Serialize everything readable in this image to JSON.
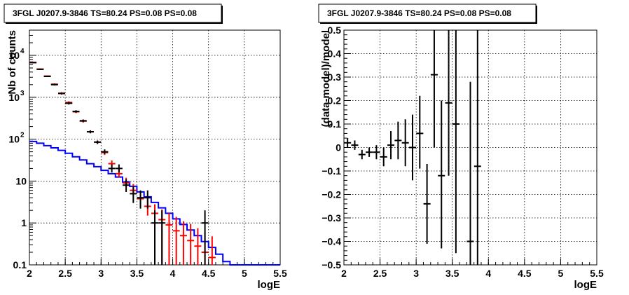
{
  "chart_data": [
    {
      "type": "line",
      "title": "3FGL J0207.9-3846 TS=80.24 PS=0.08 PS=0.08",
      "xlabel": "logE",
      "ylabel": "Nb of counts",
      "xlim": [
        2,
        5.5
      ],
      "ylim": [
        0.1,
        40000
      ],
      "yscale": "log",
      "grid": true,
      "x_ticks": [
        "2",
        "2.5",
        "3",
        "3.5",
        "4",
        "4.5",
        "5",
        "5.5"
      ],
      "y_ticks": [
        "10",
        "1",
        "0.1"
      ],
      "y_ticks_pow": [
        {
          "base": "10",
          "exp": "4"
        },
        {
          "base": "10",
          "exp": "3"
        },
        {
          "base": "10",
          "exp": "2"
        }
      ],
      "series": [
        {
          "style": "histogram",
          "color": "#0000ff",
          "edges": [
            2.0,
            2.1,
            2.2,
            2.3,
            2.4,
            2.5,
            2.6,
            2.7,
            2.8,
            2.9,
            3.0,
            3.1,
            3.2,
            3.3,
            3.4,
            3.5,
            3.6,
            3.7,
            3.8,
            3.9,
            4.0,
            4.1,
            4.2,
            4.3,
            4.4,
            4.5,
            4.6,
            4.7,
            4.8,
            4.9,
            5.0,
            5.1,
            5.2,
            5.3,
            5.4,
            5.5
          ],
          "values": [
            88,
            80,
            70,
            62,
            54,
            46,
            38,
            32,
            26,
            22,
            18,
            15,
            12.5,
            9.5,
            7.5,
            5.5,
            4.2,
            3.1,
            2.3,
            1.7,
            1.25,
            0.92,
            0.68,
            0.5,
            0.36,
            0.26,
            0.18,
            0.12,
            0.1,
            0.1,
            0.1,
            0.1,
            0.1,
            0.1,
            0.1
          ]
        },
        {
          "style": "errorbar",
          "color": "#ff0000",
          "points": [
            {
              "x": 2.05,
              "y": 6800,
              "lo": 6600,
              "hi": 7000
            },
            {
              "x": 2.15,
              "y": 4700,
              "lo": 4550,
              "hi": 4850
            },
            {
              "x": 2.25,
              "y": 3200,
              "lo": 3080,
              "hi": 3320
            },
            {
              "x": 2.35,
              "y": 2050,
              "lo": 1960,
              "hi": 2140
            },
            {
              "x": 2.45,
              "y": 1250,
              "lo": 1180,
              "hi": 1320
            },
            {
              "x": 2.55,
              "y": 750,
              "lo": 700,
              "hi": 800
            },
            {
              "x": 2.65,
              "y": 450,
              "lo": 420,
              "hi": 480
            },
            {
              "x": 2.75,
              "y": 270,
              "lo": 250,
              "hi": 290
            },
            {
              "x": 2.85,
              "y": 150,
              "lo": 138,
              "hi": 162
            },
            {
              "x": 2.95,
              "y": 85,
              "lo": 77,
              "hi": 93
            },
            {
              "x": 3.05,
              "y": 48,
              "lo": 42,
              "hi": 55
            },
            {
              "x": 3.15,
              "y": 26,
              "lo": 22,
              "hi": 31
            },
            {
              "x": 3.25,
              "y": 15,
              "lo": 12,
              "hi": 19
            },
            {
              "x": 3.35,
              "y": 9,
              "lo": 7,
              "hi": 12
            },
            {
              "x": 3.45,
              "y": 6,
              "lo": 4.5,
              "hi": 8.5
            },
            {
              "x": 3.55,
              "y": 3.8,
              "lo": 2.5,
              "hi": 5.5
            },
            {
              "x": 3.65,
              "y": 2.5,
              "lo": 1.5,
              "hi": 4
            },
            {
              "x": 3.75,
              "y": 1.7,
              "lo": 0.9,
              "hi": 2.8
            },
            {
              "x": 3.85,
              "y": 1.2,
              "lo": 0.1,
              "hi": 2.1
            },
            {
              "x": 3.95,
              "y": 0.9,
              "lo": 0.1,
              "hi": 1.7
            },
            {
              "x": 4.05,
              "y": 0.65,
              "lo": 0.1,
              "hi": 1.4
            },
            {
              "x": 4.15,
              "y": 0.5,
              "lo": 0.1,
              "hi": 1.1
            },
            {
              "x": 4.25,
              "y": 0.38,
              "lo": 0.1,
              "hi": 0.95
            },
            {
              "x": 4.35,
              "y": 0.28,
              "lo": 0.1,
              "hi": 0.75
            },
            {
              "x": 4.45,
              "y": 0.2,
              "lo": 0.1,
              "hi": 0.6
            },
            {
              "x": 4.55,
              "y": 0.15,
              "lo": 0.1,
              "hi": 0.48
            }
          ]
        },
        {
          "style": "errorbar",
          "color": "#000000",
          "points": [
            {
              "x": 2.05,
              "y": 6700,
              "lo": 6500,
              "hi": 6900
            },
            {
              "x": 2.15,
              "y": 4650,
              "lo": 4500,
              "hi": 4800
            },
            {
              "x": 2.25,
              "y": 3150,
              "lo": 3030,
              "hi": 3270
            },
            {
              "x": 2.35,
              "y": 2000,
              "lo": 1910,
              "hi": 2090
            },
            {
              "x": 2.45,
              "y": 1230,
              "lo": 1160,
              "hi": 1300
            },
            {
              "x": 2.55,
              "y": 720,
              "lo": 670,
              "hi": 770
            },
            {
              "x": 2.65,
              "y": 460,
              "lo": 430,
              "hi": 490
            },
            {
              "x": 2.75,
              "y": 275,
              "lo": 255,
              "hi": 295
            },
            {
              "x": 2.85,
              "y": 150,
              "lo": 138,
              "hi": 162
            },
            {
              "x": 2.95,
              "y": 85,
              "lo": 77,
              "hi": 93
            },
            {
              "x": 3.05,
              "y": 50,
              "lo": 44,
              "hi": 57
            },
            {
              "x": 3.15,
              "y": 20,
              "lo": 16,
              "hi": 25
            },
            {
              "x": 3.25,
              "y": 20,
              "lo": 16,
              "hi": 25
            },
            {
              "x": 3.35,
              "y": 8,
              "lo": 5.5,
              "hi": 11
            },
            {
              "x": 3.45,
              "y": 5,
              "lo": 3,
              "hi": 7.5
            },
            {
              "x": 3.55,
              "y": 4,
              "lo": 2.2,
              "hi": 6
            },
            {
              "x": 3.65,
              "y": 4,
              "lo": 2.2,
              "hi": 6
            },
            {
              "x": 3.75,
              "y": 1,
              "lo": 0.1,
              "hi": 2
            },
            {
              "x": 3.85,
              "y": 1,
              "lo": 0.1,
              "hi": 2
            },
            {
              "x": 4.45,
              "y": 1,
              "lo": 0.1,
              "hi": 2
            }
          ]
        }
      ]
    },
    {
      "type": "scatter",
      "title": "3FGL J0207.9-3846 TS=80.24 PS=0.08 PS=0.08",
      "xlabel": "logE",
      "ylabel": "(data-model)/model",
      "xlim": [
        2,
        5.5
      ],
      "ylim": [
        -0.5,
        0.5
      ],
      "grid": true,
      "x_ticks": [
        "2",
        "2.5",
        "3",
        "3.5",
        "4",
        "4.5",
        "5",
        "5.5"
      ],
      "y_ticks": [
        "−0.5",
        "−0.4",
        "−0.3",
        "−0.2",
        "−0.1",
        "0",
        "0.1",
        "0.2",
        "0.3",
        "0.4",
        "0.5"
      ],
      "series": [
        {
          "style": "errorbar",
          "color": "#000000",
          "points": [
            {
              "x": 2.05,
              "y": 0.02,
              "lo": 0.0,
              "hi": 0.04
            },
            {
              "x": 2.15,
              "y": 0.01,
              "lo": -0.01,
              "hi": 0.03
            },
            {
              "x": 2.25,
              "y": -0.03,
              "lo": -0.05,
              "hi": -0.01
            },
            {
              "x": 2.35,
              "y": -0.02,
              "lo": -0.04,
              "hi": 0.0
            },
            {
              "x": 2.45,
              "y": -0.02,
              "lo": -0.05,
              "hi": 0.01
            },
            {
              "x": 2.55,
              "y": -0.04,
              "lo": -0.08,
              "hi": 0.0
            },
            {
              "x": 2.65,
              "y": 0.01,
              "lo": -0.05,
              "hi": 0.07
            },
            {
              "x": 2.75,
              "y": 0.03,
              "lo": -0.05,
              "hi": 0.11
            },
            {
              "x": 2.85,
              "y": 0.02,
              "lo": -0.08,
              "hi": 0.12
            },
            {
              "x": 2.95,
              "y": 0.0,
              "lo": -0.14,
              "hi": 0.14
            },
            {
              "x": 3.05,
              "y": 0.06,
              "lo": -0.09,
              "hi": 0.22
            },
            {
              "x": 3.15,
              "y": -0.24,
              "lo": -0.41,
              "hi": -0.07
            },
            {
              "x": 3.25,
              "y": 0.31,
              "lo": 0.0,
              "hi": 0.5
            },
            {
              "x": 3.35,
              "y": -0.12,
              "lo": -0.43,
              "hi": 0.2
            },
            {
              "x": 3.45,
              "y": 0.19,
              "lo": -0.12,
              "hi": 0.5
            },
            {
              "x": 3.55,
              "y": 0.1,
              "lo": -0.45,
              "hi": 0.5
            },
            {
              "x": 3.75,
              "y": -0.4,
              "lo": -0.5,
              "hi": 0.28
            },
            {
              "x": 3.85,
              "y": -0.08,
              "lo": -0.5,
              "hi": 0.5
            }
          ]
        }
      ]
    }
  ]
}
